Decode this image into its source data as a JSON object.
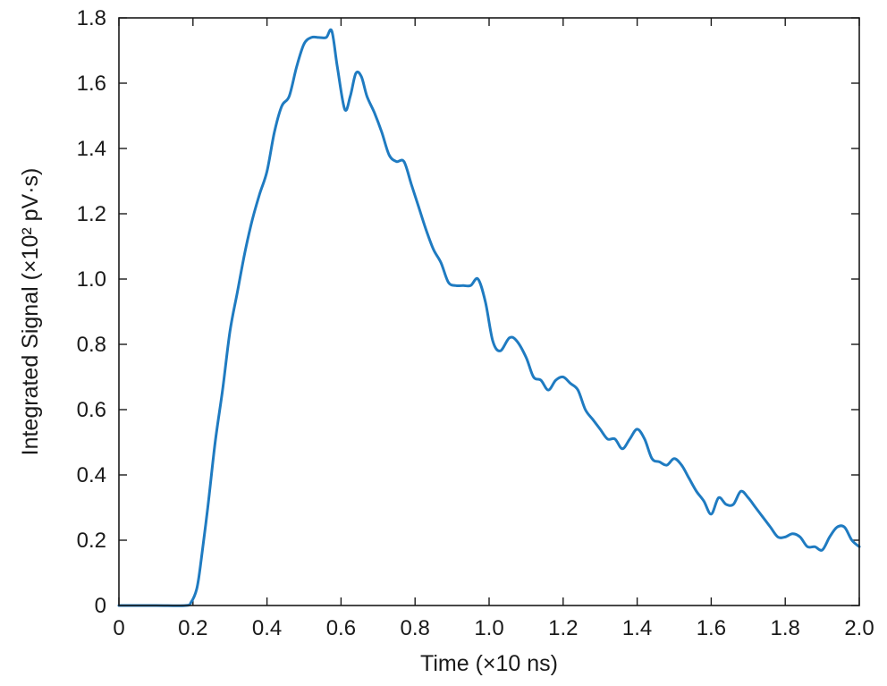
{
  "chart_data": {
    "type": "line",
    "xlabel": "Time (×10 ns)",
    "ylabel": "Integrated Signal (×10² pV·s)",
    "xlim": [
      0,
      2.0
    ],
    "ylim": [
      0,
      1.8
    ],
    "xticks": [
      "0",
      "0.2",
      "0.4",
      "0.6",
      "0.8",
      "1.0",
      "1.2",
      "1.4",
      "1.6",
      "1.8",
      "2.0"
    ],
    "yticks": [
      "0",
      "0.2",
      "0.4",
      "0.6",
      "0.8",
      "1.0",
      "1.2",
      "1.4",
      "1.6",
      "1.8"
    ],
    "grid": false,
    "series": [
      {
        "color": "#1f7bc1",
        "x": [
          0.0,
          0.1,
          0.18,
          0.195,
          0.21,
          0.22,
          0.24,
          0.26,
          0.28,
          0.3,
          0.32,
          0.34,
          0.36,
          0.38,
          0.4,
          0.42,
          0.44,
          0.46,
          0.48,
          0.5,
          0.52,
          0.54,
          0.56,
          0.575,
          0.59,
          0.61,
          0.625,
          0.64,
          0.655,
          0.67,
          0.69,
          0.71,
          0.73,
          0.75,
          0.77,
          0.79,
          0.81,
          0.83,
          0.85,
          0.87,
          0.89,
          0.91,
          0.93,
          0.95,
          0.97,
          0.99,
          1.01,
          1.03,
          1.055,
          1.075,
          1.1,
          1.12,
          1.14,
          1.16,
          1.18,
          1.2,
          1.22,
          1.24,
          1.26,
          1.28,
          1.3,
          1.32,
          1.34,
          1.36,
          1.38,
          1.4,
          1.42,
          1.44,
          1.46,
          1.48,
          1.5,
          1.52,
          1.54,
          1.56,
          1.58,
          1.6,
          1.62,
          1.64,
          1.66,
          1.68,
          1.7,
          1.72,
          1.74,
          1.76,
          1.78,
          1.8,
          1.82,
          1.84,
          1.86,
          1.88,
          1.9,
          1.92,
          1.94,
          1.96,
          1.98,
          2.0
        ],
        "values": [
          0.0,
          0.0,
          0.0,
          0.01,
          0.05,
          0.12,
          0.3,
          0.5,
          0.66,
          0.84,
          0.96,
          1.08,
          1.18,
          1.26,
          1.33,
          1.45,
          1.53,
          1.56,
          1.65,
          1.72,
          1.74,
          1.74,
          1.74,
          1.76,
          1.65,
          1.52,
          1.56,
          1.63,
          1.62,
          1.56,
          1.51,
          1.45,
          1.38,
          1.36,
          1.36,
          1.29,
          1.22,
          1.15,
          1.09,
          1.05,
          0.99,
          0.98,
          0.98,
          0.98,
          1.0,
          0.93,
          0.81,
          0.78,
          0.82,
          0.81,
          0.76,
          0.7,
          0.69,
          0.66,
          0.69,
          0.7,
          0.68,
          0.66,
          0.6,
          0.57,
          0.54,
          0.51,
          0.51,
          0.48,
          0.51,
          0.54,
          0.51,
          0.45,
          0.44,
          0.43,
          0.45,
          0.43,
          0.39,
          0.35,
          0.32,
          0.28,
          0.33,
          0.31,
          0.31,
          0.35,
          0.33,
          0.3,
          0.27,
          0.24,
          0.21,
          0.21,
          0.22,
          0.21,
          0.18,
          0.18,
          0.17,
          0.21,
          0.24,
          0.24,
          0.2,
          0.18
        ]
      }
    ]
  }
}
